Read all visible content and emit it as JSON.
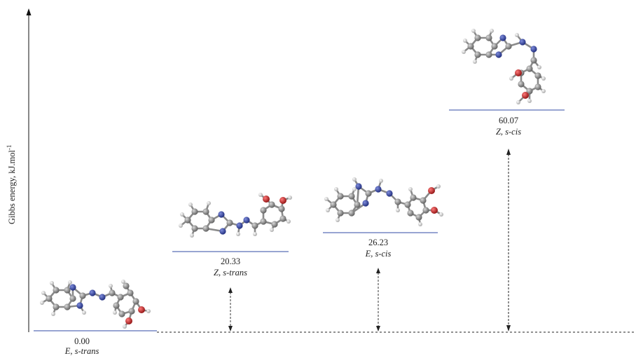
{
  "y_axis_label": "Gibbs energy, kJ.mol",
  "y_axis_label_superscript": "-1",
  "levels": [
    {
      "id": "level-1",
      "value": 0.0,
      "value_text": "0.00",
      "isomer": "E",
      "conformer": "s-trans",
      "label": "E, s-trans"
    },
    {
      "id": "level-2",
      "value": 20.33,
      "value_text": "20.33",
      "isomer": "Z",
      "conformer": "s-trans",
      "label": "Z, s-trans"
    },
    {
      "id": "level-3",
      "value": 26.23,
      "value_text": "26.23",
      "isomer": "E",
      "conformer": "s-cis",
      "label": "E, s-cis"
    },
    {
      "id": "level-4",
      "value": 60.07,
      "value_text": "60.07",
      "isomer": "Z",
      "conformer": "s-cis",
      "label": "Z, s-cis"
    }
  ],
  "colors": {
    "level_line": "#5b6fb8",
    "carbon": "#8c8c8c",
    "hydrogen": "#e6e6e6",
    "nitrogen": "#2f3d9c",
    "oxygen": "#c62828",
    "axis": "#111111"
  }
}
